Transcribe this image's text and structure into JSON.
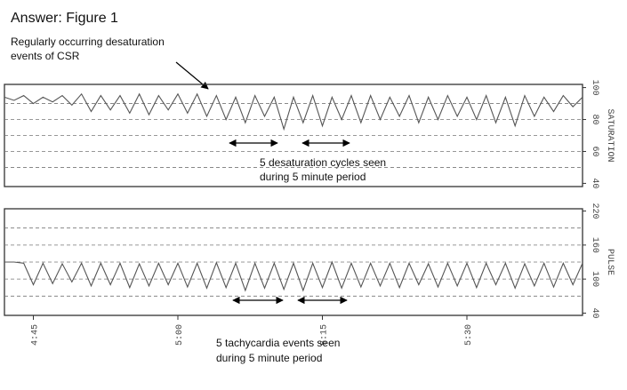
{
  "title": "Answer: Figure 1",
  "annotations": [
    [
      "Regularly occurring desaturation",
      "events of CSR"
    ],
    [
      "5 desaturation cycles seen",
      "during 5 minute period"
    ],
    [
      "5 tachycardia events seen",
      "during 5 minute period"
    ]
  ],
  "chart_data": [
    {
      "type": "line",
      "y_label": "SATURATION",
      "xlim": [
        282,
        342
      ],
      "ylim": [
        38,
        102
      ],
      "yticks": [
        40,
        60,
        80,
        100
      ],
      "grid": [
        50,
        60,
        70,
        80,
        90
      ],
      "x": [
        282,
        283,
        284,
        285,
        286,
        287,
        288,
        289,
        290,
        291,
        292,
        293,
        294,
        295,
        296,
        297,
        298,
        299,
        300,
        301,
        302,
        303,
        304,
        305,
        306,
        307,
        308,
        309,
        310,
        311,
        312,
        313,
        314,
        315,
        316,
        317,
        318,
        319,
        320,
        321,
        322,
        323,
        324,
        325,
        326,
        327,
        328,
        329,
        330,
        331,
        332,
        333,
        334,
        335,
        336,
        337,
        338,
        339,
        340,
        341,
        342
      ],
      "series": [
        {
          "color": "#555555",
          "values": [
            94,
            92,
            95,
            90,
            94,
            91,
            95,
            89,
            96,
            85,
            95,
            86,
            95,
            84,
            96,
            83,
            95,
            86,
            96,
            84,
            96,
            82,
            95,
            80,
            94,
            78,
            95,
            82,
            94,
            74,
            94,
            78,
            95,
            76,
            94,
            80,
            95,
            78,
            95,
            80,
            94,
            82,
            95,
            78,
            94,
            80,
            95,
            82,
            94,
            80,
            95,
            78,
            94,
            76,
            95,
            82,
            94,
            85,
            95,
            88,
            94
          ]
        }
      ]
    },
    {
      "type": "line",
      "y_label": "PULSE",
      "xlim": [
        282,
        342
      ],
      "ylim": [
        36,
        224
      ],
      "yticks": [
        40,
        100,
        160,
        220
      ],
      "grid": [
        70,
        100,
        130,
        160,
        190
      ],
      "x": [
        282,
        283,
        284,
        285,
        286,
        287,
        288,
        289,
        290,
        291,
        292,
        293,
        294,
        295,
        296,
        297,
        298,
        299,
        300,
        301,
        302,
        303,
        304,
        305,
        306,
        307,
        308,
        309,
        310,
        311,
        312,
        313,
        314,
        315,
        316,
        317,
        318,
        319,
        320,
        321,
        322,
        323,
        324,
        325,
        326,
        327,
        328,
        329,
        330,
        331,
        332,
        333,
        334,
        335,
        336,
        337,
        338,
        339,
        340,
        341,
        342
      ],
      "xticks": [
        {
          "value": 285,
          "label": "4:45"
        },
        {
          "value": 300,
          "label": "5:00"
        },
        {
          "value": 315,
          "label": "5:15"
        },
        {
          "value": 330,
          "label": "5:30"
        }
      ],
      "series": [
        {
          "color": "#555555",
          "values": [
            130,
            130,
            128,
            90,
            128,
            92,
            127,
            95,
            128,
            88,
            128,
            90,
            128,
            85,
            127,
            88,
            128,
            90,
            128,
            86,
            128,
            84,
            129,
            85,
            128,
            80,
            128,
            84,
            128,
            82,
            128,
            80,
            128,
            85,
            130,
            84,
            128,
            86,
            128,
            88,
            128,
            85,
            128,
            90,
            127,
            86,
            128,
            88,
            128,
            85,
            128,
            90,
            128,
            84,
            127,
            88,
            128,
            86,
            128,
            90,
            128
          ]
        }
      ]
    }
  ]
}
